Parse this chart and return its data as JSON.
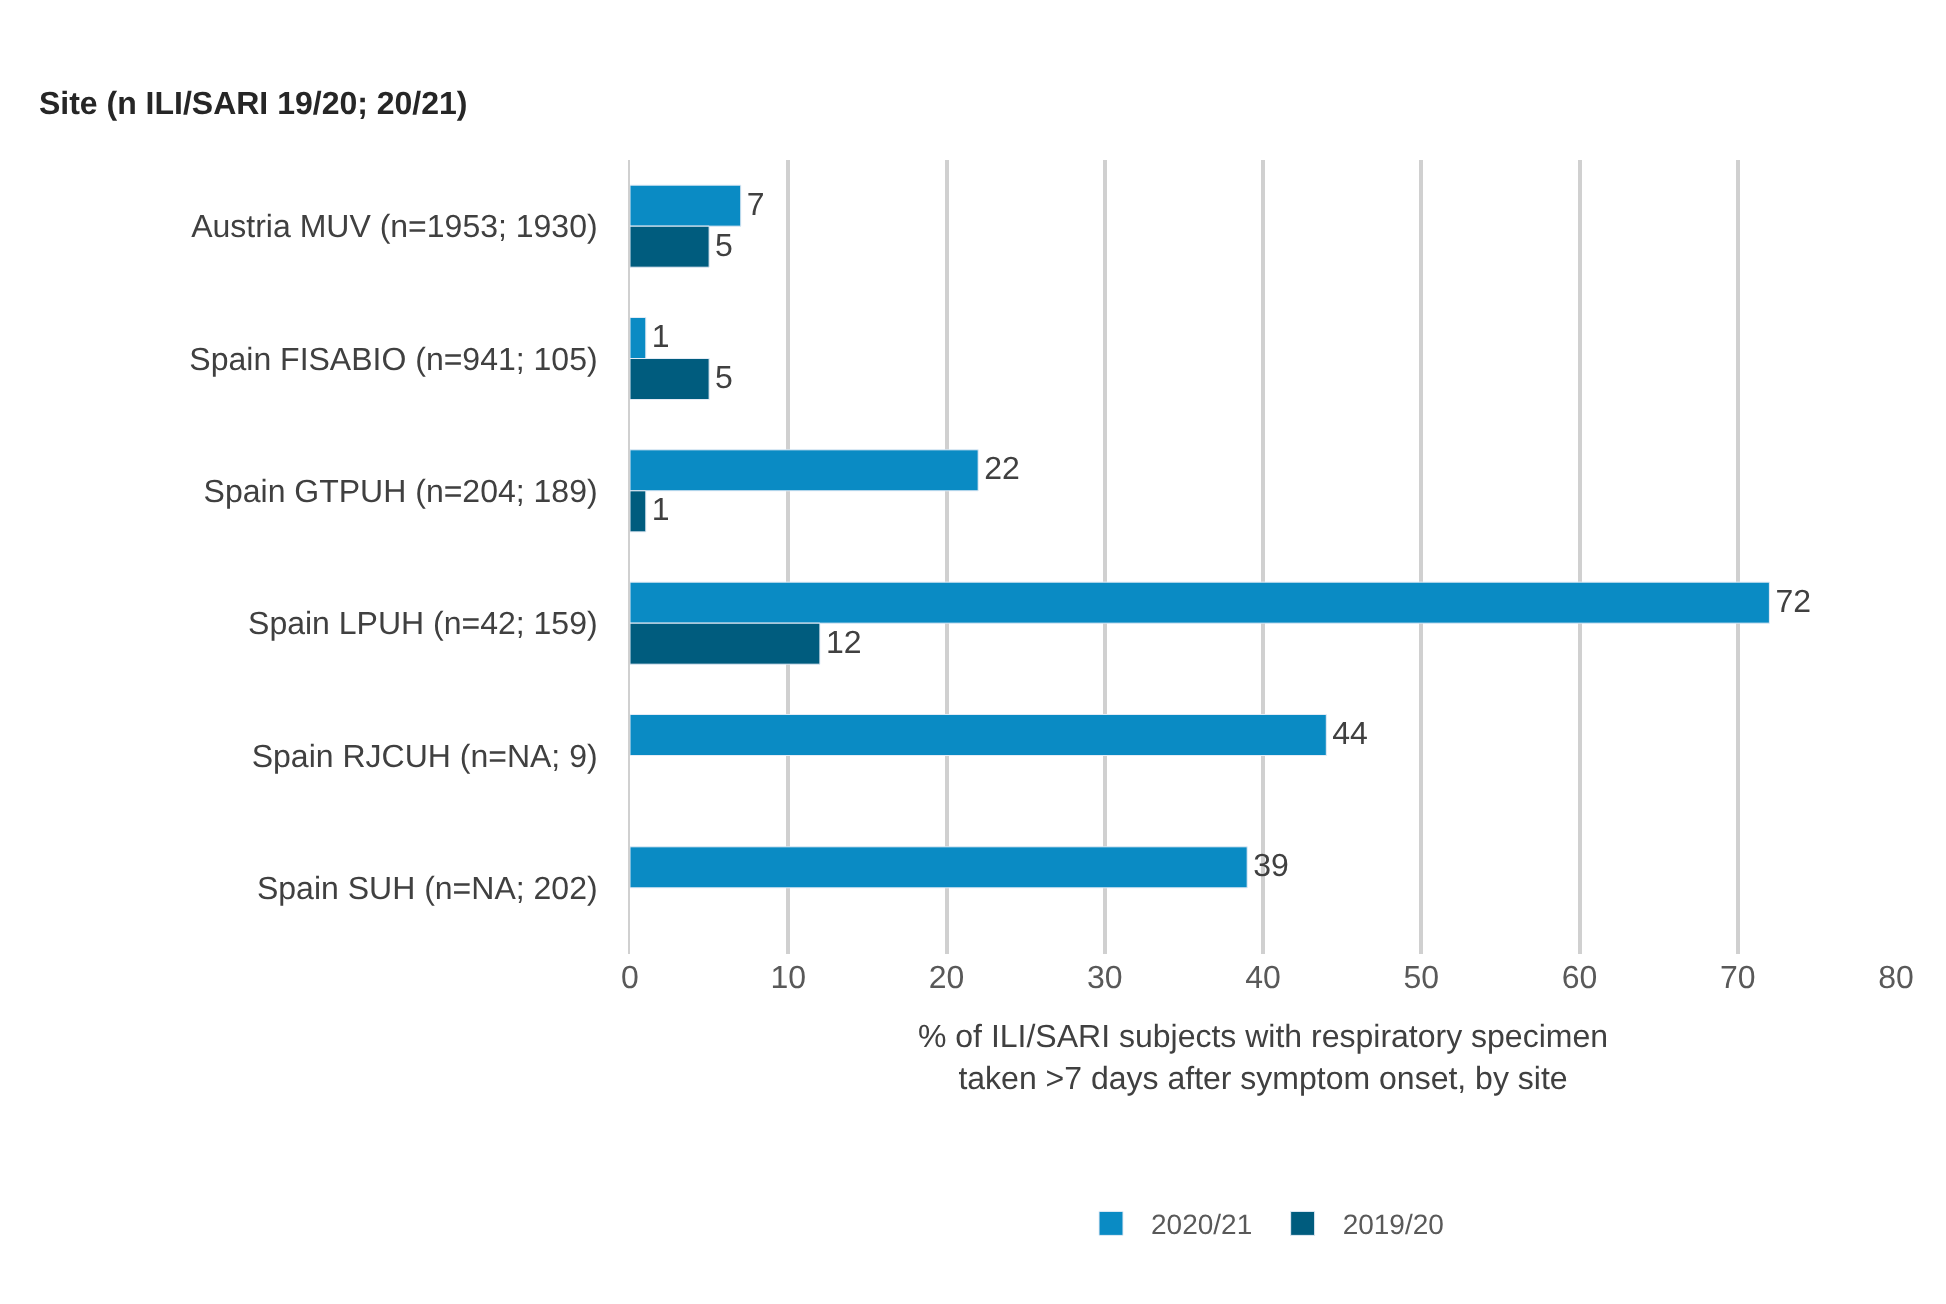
{
  "chart_data": {
    "type": "bar",
    "orientation": "horizontal",
    "title": "Site (n ILI/SARI 19/20; 20/21)",
    "categories": [
      "Austria MUV (n=1953; 1930)",
      "Spain FISABIO (n=941; 105)",
      "Spain GTPUH (n=204; 189)",
      "Spain LPUH (n=42; 159)",
      "Spain RJCUH (n=NA; 9)",
      "Spain SUH (n=NA; 202)"
    ],
    "series": [
      {
        "name": "2020/21",
        "color": "#0a8bc4",
        "values": [
          7,
          1,
          22,
          72,
          44,
          39
        ]
      },
      {
        "name": "2019/20",
        "color": "#005c7e",
        "values": [
          5,
          5,
          1,
          12,
          null,
          null
        ]
      }
    ],
    "xlabel": "% of ILI/SARI subjects with respiratory specimen taken >7 days after symptom onset, by site",
    "xlim": [
      0,
      80
    ],
    "xticks": [
      0,
      10,
      20,
      30,
      40,
      50,
      60,
      70,
      80
    ],
    "grid": "x",
    "legend": "bottom",
    "data_labels": true
  }
}
